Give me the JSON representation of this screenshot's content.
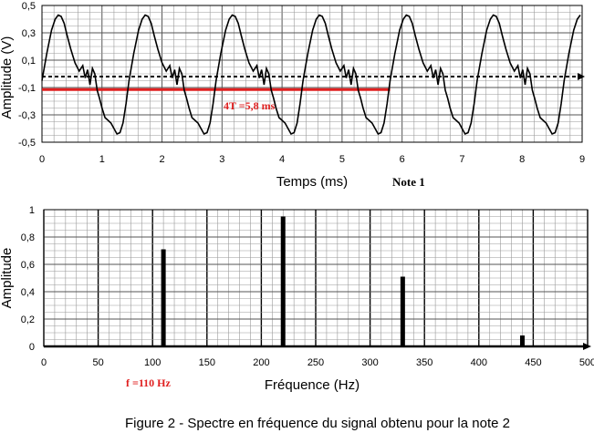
{
  "chart_data": [
    {
      "type": "line",
      "ylabel": "Amplitude (V)",
      "xlabel": "Temps (ms)",
      "note": "Note 1",
      "annotation": "4T =5,8 ms",
      "xlim": [
        0,
        9
      ],
      "ylim": [
        -0.5,
        0.5
      ],
      "x_ticks": [
        "0",
        "1",
        "2",
        "3",
        "4",
        "5",
        "6",
        "7",
        "8",
        "9"
      ],
      "y_ticks": [
        "-0,5",
        "-0,3",
        "-0,1",
        "0,1",
        "0,3",
        "0,5"
      ],
      "red_bar": {
        "x_start": 0.0,
        "x_end": 5.8,
        "y": -0.115
      },
      "zero_line_y": -0.02,
      "series": [
        {
          "period_ms": 1.45,
          "x": [
            0.0,
            0.08,
            0.16,
            0.22,
            0.27,
            0.32,
            0.37,
            0.42,
            0.48,
            0.55,
            0.62,
            0.68,
            0.72,
            0.76,
            0.8,
            0.84,
            0.88,
            0.92,
            0.96,
            1.0,
            1.05,
            1.1,
            1.15,
            1.2,
            1.25,
            1.3,
            1.35,
            1.4,
            1.45
          ],
          "y": [
            -0.05,
            0.15,
            0.32,
            0.4,
            0.43,
            0.42,
            0.37,
            0.28,
            0.18,
            0.08,
            0.02,
            0.06,
            -0.03,
            0.03,
            -0.08,
            0.04,
            0.0,
            -0.12,
            -0.18,
            -0.25,
            -0.32,
            -0.34,
            -0.36,
            -0.4,
            -0.44,
            -0.43,
            -0.36,
            -0.22,
            -0.05
          ]
        }
      ]
    },
    {
      "type": "bar",
      "ylabel": "Amplitude",
      "xlabel": "Fréquence (Hz)",
      "annotation": "f =110 Hz",
      "xlim": [
        0,
        500
      ],
      "ylim": [
        0,
        1
      ],
      "x_ticks": [
        "0",
        "50",
        "100",
        "150",
        "200",
        "250",
        "300",
        "350",
        "400",
        "450",
        "500"
      ],
      "y_ticks": [
        "0",
        "0,2",
        "0,4",
        "0,6",
        "0,8",
        "1"
      ],
      "x": [
        110,
        220,
        330,
        440
      ],
      "values": [
        0.71,
        0.95,
        0.51,
        0.08
      ]
    }
  ],
  "caption": "Figure 2 - Spectre en fréquence du signal obtenu pour la note 2"
}
